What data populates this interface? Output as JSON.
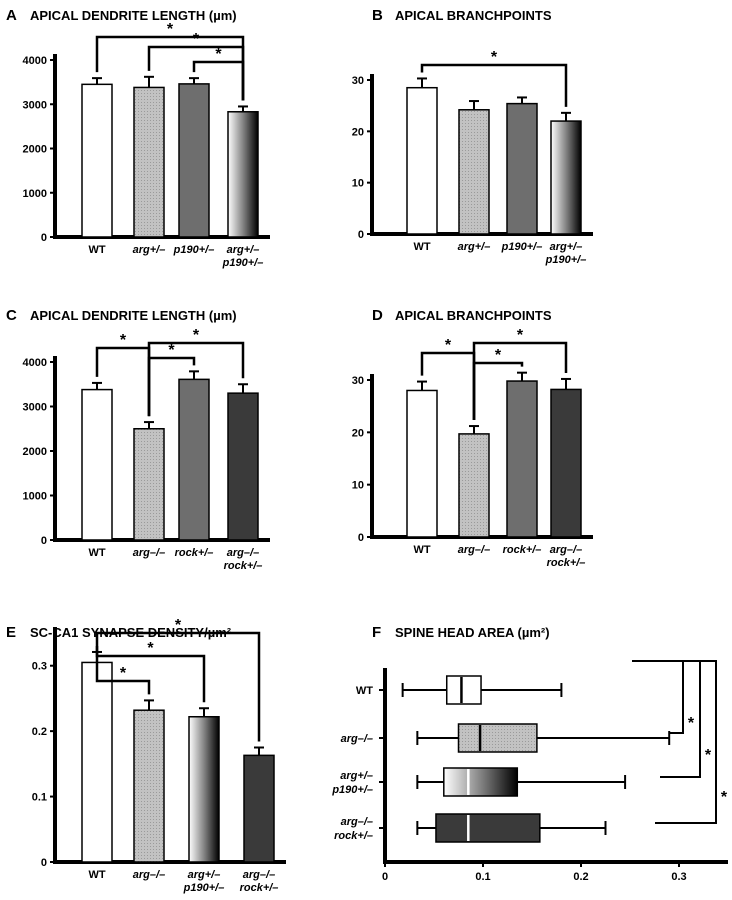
{
  "colors": {
    "white": "#ffffff",
    "light_gray": "#b8b8b8",
    "medium_gray": "#6e6e6e",
    "dark_gray": "#3a3a3a",
    "axis": "#000000"
  },
  "chart_data": [
    {
      "id": "A",
      "type": "bar",
      "panel_label": "A",
      "title": "APICAL DENDRITE LENGTH (µm)",
      "categories": [
        "WT",
        "arg+/–",
        "p190+/–",
        "arg+/– p190+/–"
      ],
      "values": [
        3450,
        3380,
        3460,
        2830
      ],
      "errors": [
        140,
        240,
        130,
        120
      ],
      "fills": [
        "white",
        "light_gray",
        "medium_gray",
        "gradient"
      ],
      "ylim": [
        0,
        4000
      ],
      "yticks": [
        0,
        1000,
        2000,
        3000,
        4000
      ],
      "significance": [
        {
          "from": 0,
          "to": 3,
          "label": "*"
        },
        {
          "from": 1,
          "to": 3,
          "label": "*"
        },
        {
          "from": 2,
          "to": 3,
          "label": "*"
        }
      ]
    },
    {
      "id": "B",
      "type": "bar",
      "panel_label": "B",
      "title": "APICAL BRANCHPOINTS",
      "categories": [
        "WT",
        "arg+/–",
        "p190+/–",
        "arg+/– p190+/–"
      ],
      "values": [
        28.5,
        24.2,
        25.4,
        22.0
      ],
      "errors": [
        1.8,
        1.7,
        1.2,
        1.6
      ],
      "fills": [
        "white",
        "light_gray",
        "medium_gray",
        "gradient"
      ],
      "ylim": [
        0,
        30
      ],
      "yticks": [
        0,
        10,
        20,
        30
      ],
      "significance": [
        {
          "from": 0,
          "to": 3,
          "label": "*"
        }
      ]
    },
    {
      "id": "C",
      "type": "bar",
      "panel_label": "C",
      "title": "APICAL DENDRITE LENGTH (µm)",
      "categories": [
        "WT",
        "arg–/–",
        "rock+/–",
        "arg–/– rock+/–"
      ],
      "values": [
        3380,
        2500,
        3610,
        3300
      ],
      "errors": [
        150,
        150,
        180,
        200
      ],
      "fills": [
        "white",
        "light_gray",
        "medium_gray",
        "dark_gray"
      ],
      "ylim": [
        0,
        4000
      ],
      "yticks": [
        0,
        1000,
        2000,
        3000,
        4000
      ],
      "significance": [
        {
          "from": 0,
          "to": 1,
          "label": "*"
        },
        {
          "from": 1,
          "to": 2,
          "label": "*"
        },
        {
          "from": 1,
          "to": 3,
          "label": "*"
        }
      ]
    },
    {
      "id": "D",
      "type": "bar",
      "panel_label": "D",
      "title": "APICAL BRANCHPOINTS",
      "categories": [
        "WT",
        "arg–/–",
        "rock+/–",
        "arg–/– rock+/–"
      ],
      "values": [
        28.0,
        19.7,
        29.8,
        28.2
      ],
      "errors": [
        1.7,
        1.5,
        1.6,
        2.0
      ],
      "fills": [
        "white",
        "light_gray",
        "medium_gray",
        "dark_gray"
      ],
      "ylim": [
        0,
        30
      ],
      "yticks": [
        0,
        10,
        20,
        30
      ],
      "significance": [
        {
          "from": 0,
          "to": 1,
          "label": "*"
        },
        {
          "from": 1,
          "to": 2,
          "label": "*"
        },
        {
          "from": 1,
          "to": 3,
          "label": "*"
        }
      ]
    },
    {
      "id": "E",
      "type": "bar",
      "panel_label": "E",
      "title": "SC-CA1 SYNAPSE DENSITY/µm²",
      "categories": [
        "WT",
        "arg–/–",
        "arg+/– p190+/–",
        "arg–/– rock+/–"
      ],
      "values": [
        0.305,
        0.232,
        0.222,
        0.163
      ],
      "errors": [
        0.016,
        0.015,
        0.013,
        0.012
      ],
      "fills": [
        "white",
        "light_gray",
        "gradient",
        "dark_gray"
      ],
      "ylim": [
        0,
        0.35
      ],
      "yticks": [
        0,
        0.1,
        0.2,
        0.3
      ],
      "ytick_labels": [
        "0",
        "0.1",
        "0.2",
        "0.3"
      ],
      "significance": [
        {
          "from": 0,
          "to": 1,
          "label": "*"
        },
        {
          "from": 0,
          "to": 2,
          "label": "*"
        },
        {
          "from": 0,
          "to": 3,
          "label": "*"
        }
      ]
    },
    {
      "id": "F",
      "type": "boxplot",
      "panel_label": "F",
      "title": "SPINE HEAD AREA (µm²)",
      "categories": [
        "WT",
        "arg–/–",
        "arg+/– p190+/–",
        "arg–/– rock+/–"
      ],
      "boxes": [
        {
          "min": 0.018,
          "q1": 0.063,
          "median": 0.078,
          "q3": 0.098,
          "max": 0.18
        },
        {
          "min": 0.033,
          "q1": 0.075,
          "median": 0.097,
          "q3": 0.155,
          "max": 0.29
        },
        {
          "min": 0.033,
          "q1": 0.06,
          "median": 0.085,
          "q3": 0.135,
          "max": 0.245
        },
        {
          "min": 0.033,
          "q1": 0.052,
          "median": 0.085,
          "q3": 0.158,
          "max": 0.225
        }
      ],
      "fills": [
        "white",
        "light_gray",
        "gradient",
        "dark_gray"
      ],
      "xlim": [
        0,
        0.35
      ],
      "xticks": [
        0,
        0.1,
        0.2,
        0.3
      ],
      "xtick_labels": [
        "0",
        "0.1",
        "0.2",
        "0.3"
      ],
      "significance": [
        {
          "from": 0,
          "to": 1,
          "label": "*"
        },
        {
          "from": 0,
          "to": 2,
          "label": "*"
        },
        {
          "from": 0,
          "to": 3,
          "label": "*"
        }
      ]
    }
  ]
}
